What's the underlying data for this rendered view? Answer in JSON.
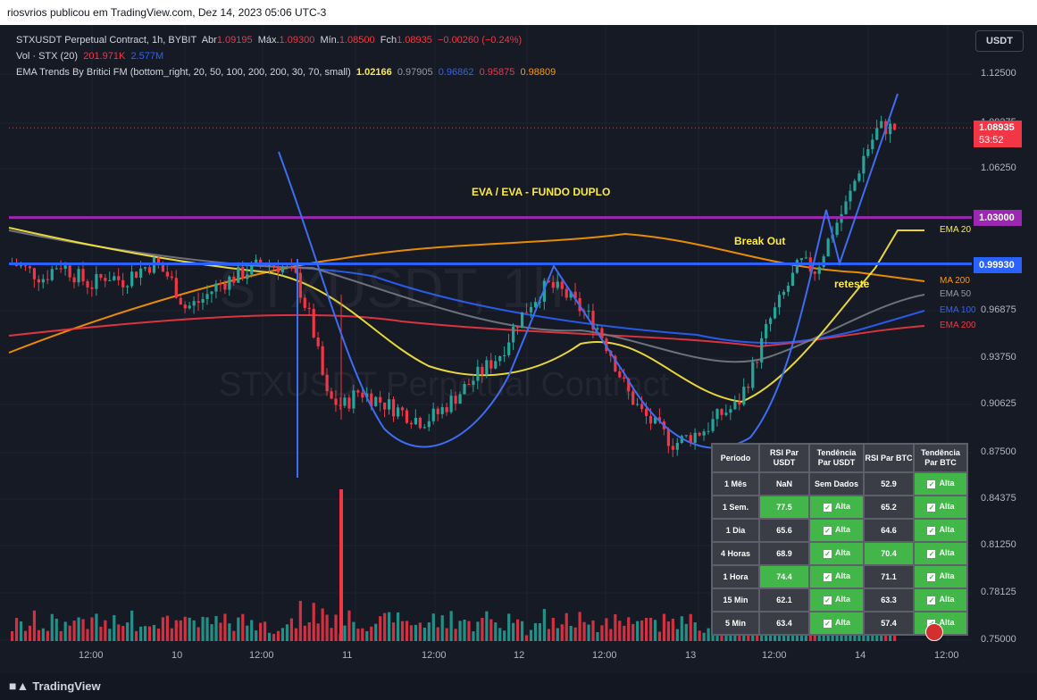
{
  "header": {
    "published": "riosvrios publicou em TradingView.com, Dez 14, 2023 05:06 UTC-3"
  },
  "legend": {
    "symbol": "STXUSDT Perpetual Contract, 1h, BYBIT",
    "open_label": "Abr",
    "open": "1.09195",
    "high_label": "Máx.",
    "high": "1.09300",
    "low_label": "Mín.",
    "low": "1.08500",
    "close_label": "Fch",
    "close": "1.08935",
    "change": "−0.00260 (−0.24%)",
    "vol_label": "Vol · STX (20)",
    "vol1": "201.971K",
    "vol2": "2.577M",
    "ema_label": "EMA Trends By Britici FM  (bottom_right, 20, 50, 100, 200, 200, 30, 70, small)",
    "ema_vals": [
      "1.02166",
      "0.97905",
      "0.96862",
      "0.95875",
      "0.98809"
    ]
  },
  "currency_button": "USDT",
  "price_axis": [
    "1.12500",
    "1.09375",
    "1.06250",
    "0.96875",
    "0.93750",
    "0.90625",
    "0.87500",
    "0.84375",
    "0.81250",
    "0.78125",
    "0.75000"
  ],
  "price_tags": {
    "last": "1.08935",
    "countdown": "53:52",
    "level_upper": "1.03000",
    "level_lower": "0.99930"
  },
  "ema_tags": [
    "EMA 20",
    "MA 200",
    "EMA 50",
    "EMA 100",
    "EMA 200"
  ],
  "time_axis": [
    "12:00",
    "10",
    "12:00",
    "11",
    "12:00",
    "12",
    "12:00",
    "13",
    "12:00",
    "14",
    "12:00"
  ],
  "annotations": {
    "pattern": "EVA / EVA - FUNDO DUPLO",
    "breakout": "Break Out",
    "retest": "reteste"
  },
  "watermark": {
    "big": "STXUSDT, 1h",
    "small": "STXUSDT Perpetual Contract"
  },
  "rsi_table": {
    "headers": [
      "Período",
      "RSI Par USDT",
      "Tendência Par USDT",
      "RSI Par BTC",
      "Tendência Par BTC"
    ],
    "rows": [
      {
        "period": "1 Mês",
        "rsi_usdt": "NaN",
        "trend_usdt": "Sem Dados",
        "rsi_btc": "52.9",
        "trend_btc": "Alta"
      },
      {
        "period": "1 Sem.",
        "rsi_usdt": "77.5",
        "trend_usdt": "Alta",
        "rsi_btc": "65.2",
        "trend_btc": "Alta"
      },
      {
        "period": "1 Dia",
        "rsi_usdt": "65.6",
        "trend_usdt": "Alta",
        "rsi_btc": "64.6",
        "trend_btc": "Alta"
      },
      {
        "period": "4 Horas",
        "rsi_usdt": "68.9",
        "trend_usdt": "Alta",
        "rsi_btc": "70.4",
        "trend_btc": "Alta"
      },
      {
        "period": "1 Hora",
        "rsi_usdt": "74.4",
        "trend_usdt": "Alta",
        "rsi_btc": "71.1",
        "trend_btc": "Alta"
      },
      {
        "period": "15 Min",
        "rsi_usdt": "62.1",
        "trend_usdt": "Alta",
        "rsi_btc": "63.3",
        "trend_btc": "Alta"
      },
      {
        "period": "5 Min",
        "rsi_usdt": "63.4",
        "trend_usdt": "Alta",
        "rsi_btc": "57.4",
        "trend_btc": "Alta"
      }
    ]
  },
  "footer": {
    "brand": "TradingView"
  },
  "colors": {
    "up": "#26a69a",
    "down": "#f23645",
    "purple_line": "#9c27b0",
    "blue_line": "#2962ff",
    "ema20": "#ffeb3b",
    "ma200": "#ff9800",
    "ema50": "#787b86",
    "ema100": "#2962ff",
    "ema200": "#f23645"
  },
  "chart_data": {
    "type": "candlestick",
    "ylim": [
      0.75,
      1.125
    ],
    "levels": [
      1.03,
      0.9993
    ],
    "close_price": [
      1.0,
      0.995,
      0.99,
      1.0,
      0.992,
      0.985,
      0.992,
      0.988,
      0.995,
      1.0,
      0.99,
      0.97,
      0.975,
      0.985,
      0.99,
      0.995,
      1.0,
      0.998,
      0.99,
      0.96,
      0.91,
      0.905,
      0.915,
      0.91,
      0.905,
      0.9,
      0.895,
      0.9,
      0.91,
      0.92,
      0.93,
      0.94,
      0.96,
      0.975,
      0.985,
      0.98,
      0.97,
      0.96,
      0.94,
      0.915,
      0.9,
      0.89,
      0.88,
      0.885,
      0.89,
      0.9,
      0.905,
      0.93,
      0.96,
      0.98,
      1.0,
      0.995,
      1.02,
      1.04,
      1.07,
      1.09,
      1.089
    ]
  }
}
